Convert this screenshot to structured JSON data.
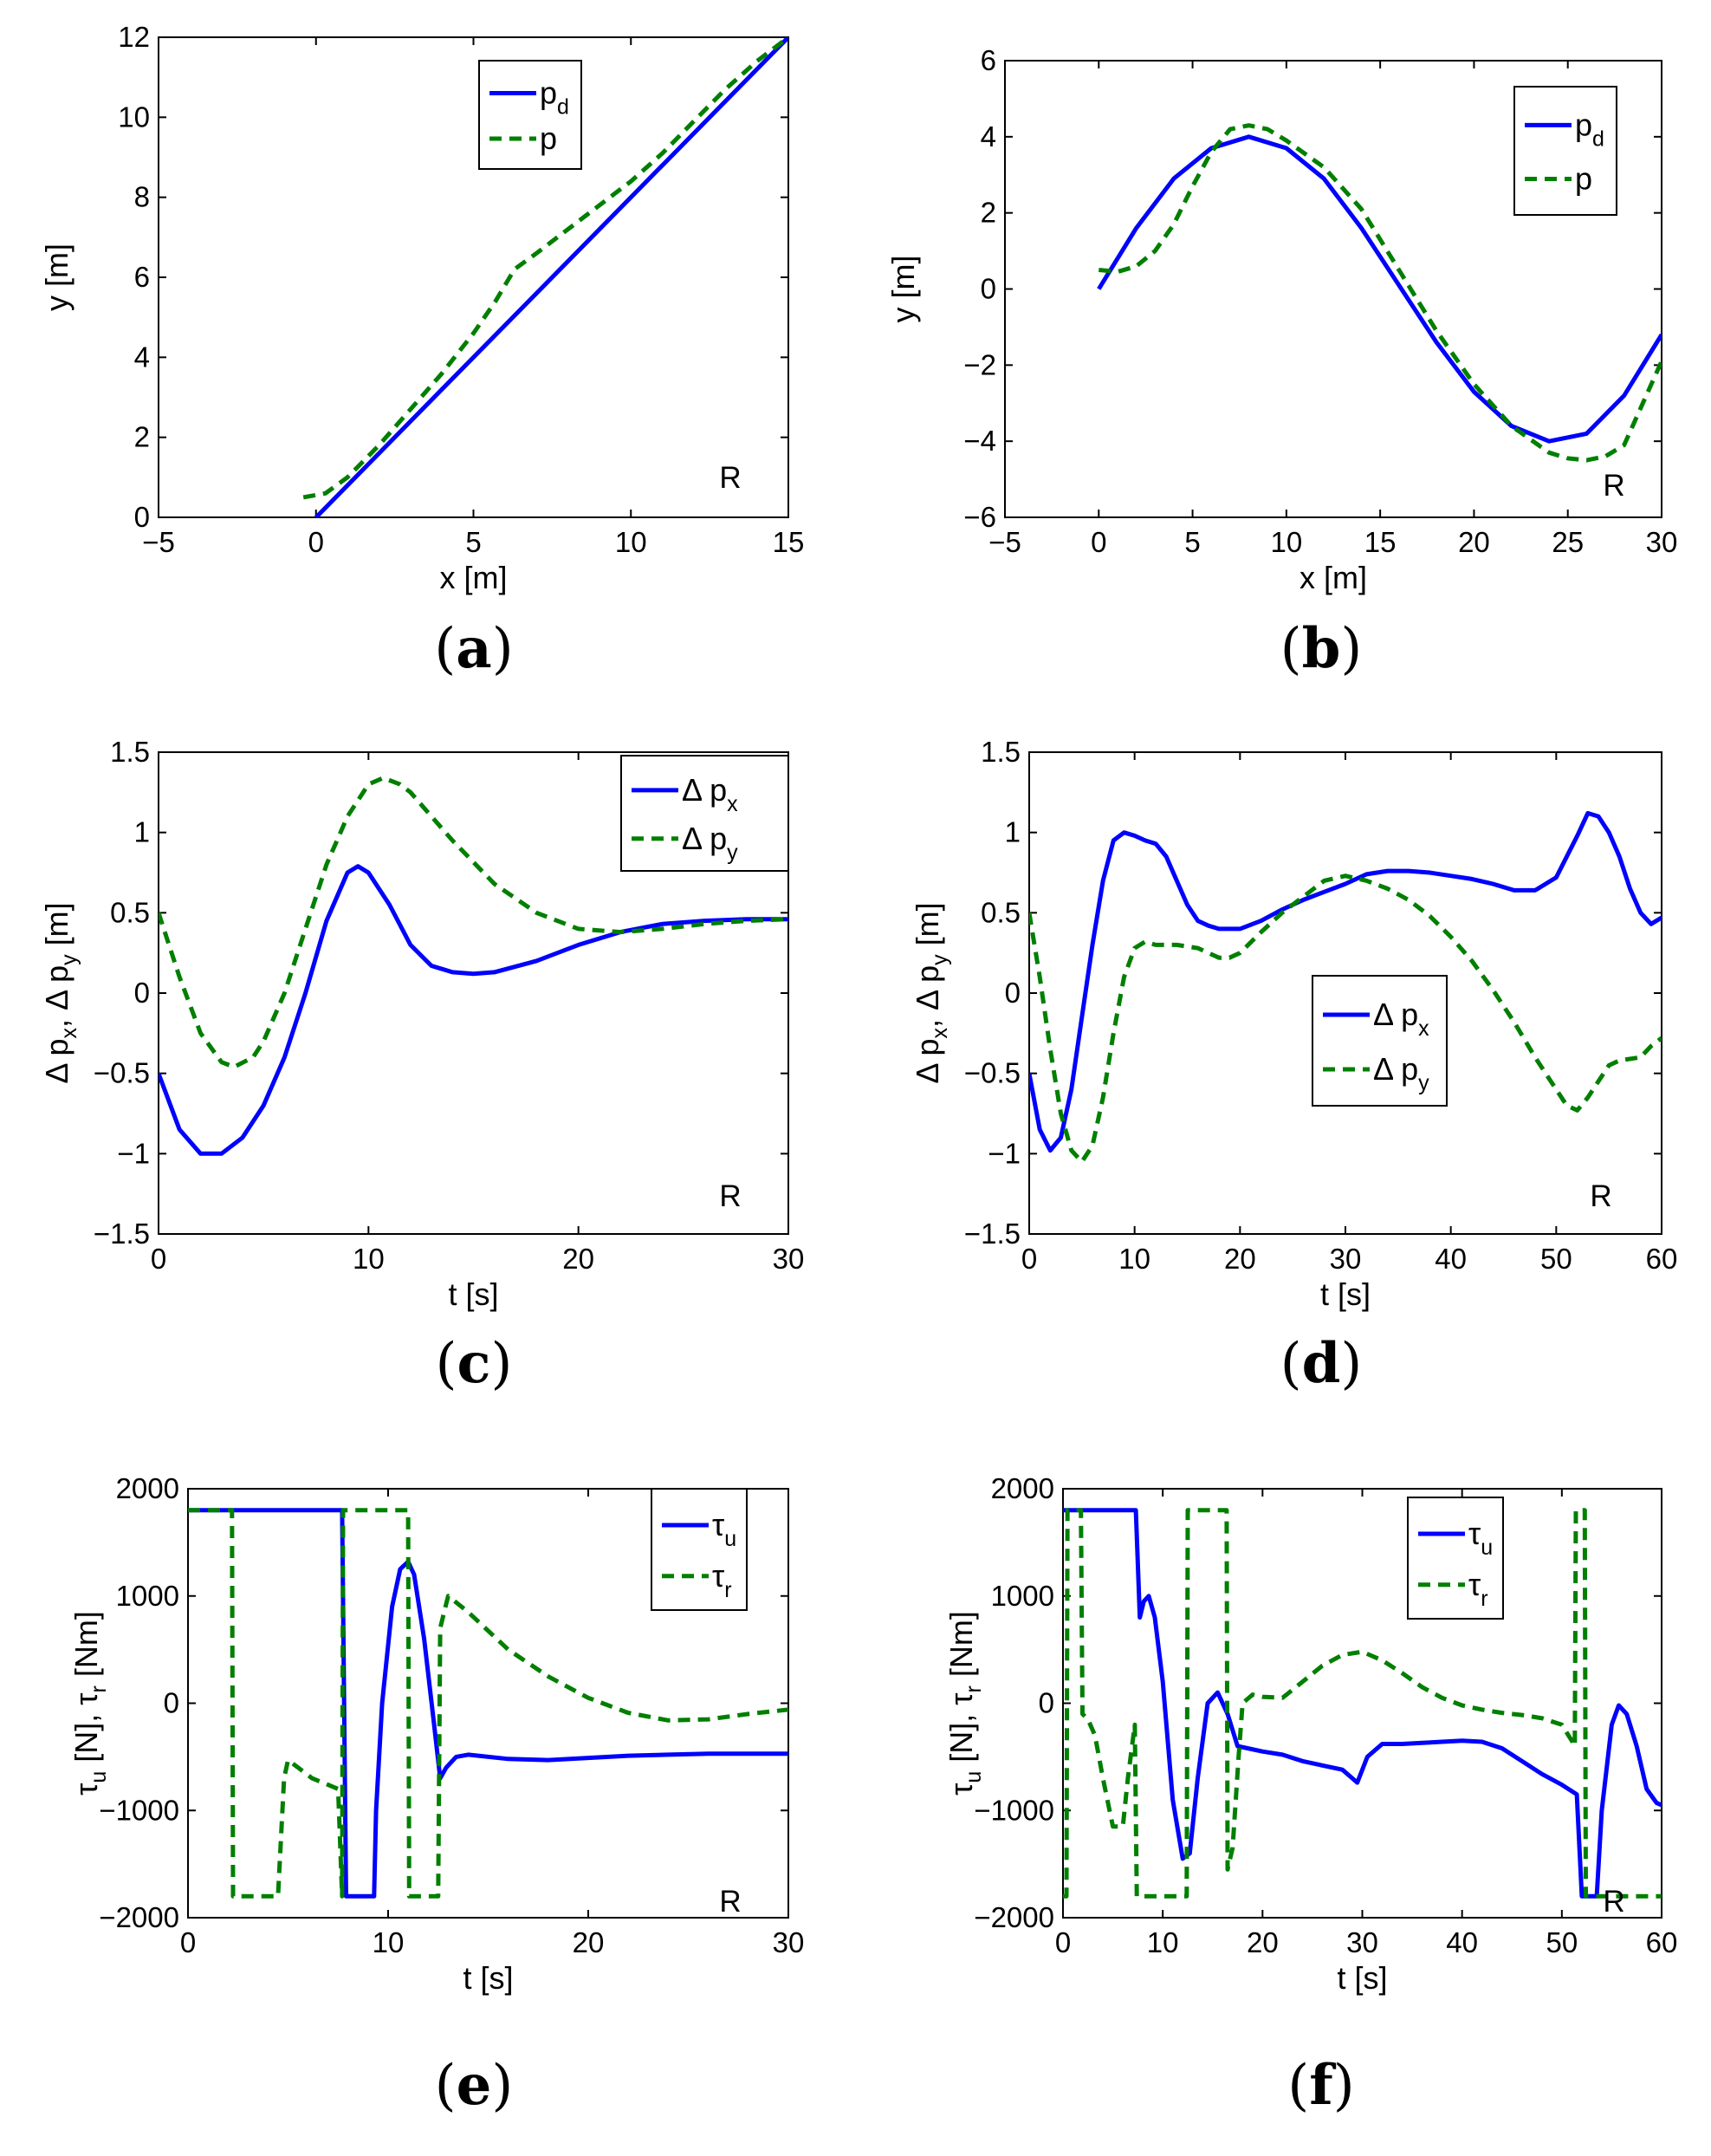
{
  "chart_data": [
    {
      "panel": "(a)",
      "type": "line",
      "xlabel": {
        "base": "x [m]"
      },
      "ylabel": {
        "base": "y [m]"
      },
      "xlim": [
        -5,
        15
      ],
      "ylim": [
        0,
        12
      ],
      "xticks": [
        -5,
        0,
        5,
        10,
        15
      ],
      "yticks": [
        0,
        2,
        4,
        6,
        8,
        10,
        12
      ],
      "annotation": "R",
      "legend_position": "top-right",
      "series": [
        {
          "legend": {
            "base": "p",
            "sub": "d"
          },
          "color": "#0000ff",
          "style": "solid",
          "x": [
            0,
            15
          ],
          "y": [
            0,
            12
          ]
        },
        {
          "legend": {
            "base": "p",
            "sub": ""
          },
          "color": "#007f00",
          "style": "dashed",
          "x": [
            -0.4,
            0.3,
            1,
            2,
            3,
            4,
            5,
            5.7,
            6.3,
            7,
            8,
            9,
            10,
            11,
            12,
            13,
            14,
            15
          ],
          "y": [
            0.5,
            0.6,
            1.0,
            1.8,
            2.7,
            3.6,
            4.6,
            5.4,
            6.2,
            6.6,
            7.2,
            7.8,
            8.4,
            9.1,
            9.9,
            10.7,
            11.4,
            12
          ]
        }
      ]
    },
    {
      "panel": "(b)",
      "type": "line",
      "xlabel": {
        "base": "x [m]"
      },
      "ylabel": {
        "base": "y [m]"
      },
      "xlim": [
        -5,
        30
      ],
      "ylim": [
        -6,
        6
      ],
      "xticks": [
        -5,
        0,
        5,
        10,
        15,
        20,
        25,
        30
      ],
      "yticks": [
        -6,
        -4,
        -2,
        0,
        2,
        4,
        6
      ],
      "annotation": "R",
      "legend_position": "top-right",
      "series": [
        {
          "legend": {
            "base": "p",
            "sub": "d"
          },
          "color": "#0000ff",
          "style": "solid",
          "x": [
            0,
            2,
            4,
            6,
            8,
            10,
            12,
            14,
            16,
            18,
            20,
            22,
            24,
            26,
            28,
            30
          ],
          "y": [
            0,
            1.6,
            2.9,
            3.7,
            4.0,
            3.7,
            2.9,
            1.6,
            0.1,
            -1.4,
            -2.7,
            -3.6,
            -4.0,
            -3.8,
            -2.8,
            -1.2
          ]
        },
        {
          "legend": {
            "base": "p",
            "sub": ""
          },
          "color": "#007f00",
          "style": "dashed",
          "x": [
            0,
            1,
            2,
            3,
            4,
            5,
            6,
            7,
            8,
            9,
            10,
            12,
            14,
            16,
            18,
            20,
            22,
            24,
            25,
            26,
            27,
            28,
            30
          ],
          "y": [
            0.5,
            0.45,
            0.6,
            1.0,
            1.7,
            2.7,
            3.6,
            4.2,
            4.3,
            4.2,
            3.9,
            3.2,
            2.1,
            0.5,
            -1.1,
            -2.5,
            -3.6,
            -4.3,
            -4.45,
            -4.5,
            -4.4,
            -4.1,
            -1.9
          ]
        }
      ]
    },
    {
      "panel": "(c)",
      "type": "line",
      "xlabel": {
        "base": "t [s]"
      },
      "ylabel": {
        "parts": [
          [
            "Δ p",
            ""
          ],
          [
            "x",
            "sub"
          ],
          [
            ", Δ p",
            ""
          ],
          [
            "y",
            "sub"
          ],
          [
            " [m]",
            ""
          ]
        ]
      },
      "xlim": [
        0,
        30
      ],
      "ylim": [
        -1.5,
        1.5
      ],
      "xticks": [
        0,
        10,
        20,
        30
      ],
      "yticks": [
        -1.5,
        -1,
        -0.5,
        0,
        0.5,
        1,
        1.5
      ],
      "annotation": "R",
      "legend_position": "top-right",
      "series": [
        {
          "legend": {
            "base": "Δ p",
            "sub": "x"
          },
          "color": "#0000ff",
          "style": "solid",
          "x": [
            0,
            1,
            2,
            3,
            4,
            5,
            6,
            7,
            8,
            9,
            9.5,
            10,
            11,
            12,
            13,
            14,
            15,
            16,
            18,
            20,
            22,
            24,
            26,
            28,
            30
          ],
          "y": [
            -0.5,
            -0.85,
            -1.0,
            -1.0,
            -0.9,
            -0.7,
            -0.4,
            0.0,
            0.45,
            0.75,
            0.79,
            0.75,
            0.55,
            0.3,
            0.17,
            0.13,
            0.12,
            0.13,
            0.2,
            0.3,
            0.38,
            0.43,
            0.45,
            0.46,
            0.46
          ]
        },
        {
          "legend": {
            "base": "Δ p",
            "sub": "y"
          },
          "color": "#007f00",
          "style": "dashed",
          "x": [
            0,
            1,
            2,
            3,
            3.6,
            4.5,
            5,
            6,
            7,
            8,
            9,
            10,
            10.7,
            11.5,
            12,
            13,
            14,
            16,
            18,
            20,
            22,
            24,
            26,
            28,
            30
          ],
          "y": [
            0.5,
            0.1,
            -0.25,
            -0.43,
            -0.46,
            -0.4,
            -0.3,
            0.0,
            0.4,
            0.8,
            1.1,
            1.3,
            1.34,
            1.3,
            1.25,
            1.1,
            0.95,
            0.68,
            0.5,
            0.4,
            0.38,
            0.4,
            0.43,
            0.45,
            0.46
          ]
        }
      ]
    },
    {
      "panel": "(d)",
      "type": "line",
      "xlabel": {
        "base": "t [s]"
      },
      "ylabel": {
        "parts": [
          [
            "Δ p",
            ""
          ],
          [
            "x",
            "sub"
          ],
          [
            ", Δ p",
            ""
          ],
          [
            "y",
            "sub"
          ],
          [
            " [m]",
            ""
          ]
        ]
      },
      "xlim": [
        0,
        60
      ],
      "ylim": [
        -1.5,
        1.5
      ],
      "xticks": [
        0,
        10,
        20,
        30,
        40,
        50,
        60
      ],
      "yticks": [
        -1.5,
        -1,
        -0.5,
        0,
        0.5,
        1,
        1.5
      ],
      "annotation": "R",
      "legend_position": "center",
      "series": [
        {
          "legend": {
            "base": "Δ p",
            "sub": "x"
          },
          "color": "#0000ff",
          "style": "solid",
          "x": [
            0,
            1,
            2,
            3,
            4,
            5,
            6,
            7,
            8,
            9,
            10,
            11,
            12,
            13,
            14,
            15,
            16,
            17,
            18,
            19,
            20,
            22,
            24,
            26,
            28,
            30,
            32,
            34,
            36,
            38,
            40,
            42,
            44,
            46,
            48,
            50,
            52,
            53,
            54,
            55,
            56,
            57,
            58,
            59,
            60
          ],
          "y": [
            -0.5,
            -0.85,
            -0.98,
            -0.9,
            -0.6,
            -0.15,
            0.3,
            0.7,
            0.95,
            1.0,
            0.98,
            0.95,
            0.93,
            0.85,
            0.7,
            0.55,
            0.45,
            0.42,
            0.4,
            0.4,
            0.4,
            0.45,
            0.52,
            0.58,
            0.63,
            0.68,
            0.74,
            0.76,
            0.76,
            0.75,
            0.73,
            0.71,
            0.68,
            0.64,
            0.64,
            0.72,
            0.98,
            1.12,
            1.1,
            1.0,
            0.85,
            0.65,
            0.5,
            0.43,
            0.47
          ]
        },
        {
          "legend": {
            "base": "Δ p",
            "sub": "y"
          },
          "color": "#007f00",
          "style": "dashed",
          "x": [
            0,
            1,
            2,
            3,
            4,
            5,
            6,
            7,
            8,
            9,
            10,
            11,
            12,
            14,
            16,
            18,
            19,
            20,
            22,
            24,
            26,
            28,
            30,
            32,
            34,
            36,
            38,
            40,
            42,
            44,
            46,
            48,
            50,
            51,
            52,
            53,
            54,
            55,
            56,
            58,
            59,
            60
          ],
          "y": [
            0.5,
            0.1,
            -0.35,
            -0.75,
            -0.98,
            -1.05,
            -0.95,
            -0.65,
            -0.25,
            0.1,
            0.28,
            0.32,
            0.3,
            0.3,
            0.28,
            0.22,
            0.22,
            0.25,
            0.38,
            0.5,
            0.6,
            0.7,
            0.73,
            0.7,
            0.65,
            0.58,
            0.48,
            0.35,
            0.2,
            0.02,
            -0.18,
            -0.4,
            -0.6,
            -0.7,
            -0.73,
            -0.65,
            -0.55,
            -0.45,
            -0.42,
            -0.4,
            -0.33,
            -0.28
          ]
        }
      ]
    },
    {
      "panel": "(e)",
      "type": "line",
      "xlabel": {
        "base": "t [s]"
      },
      "ylabel": {
        "parts": [
          [
            "τ",
            ""
          ],
          [
            "u",
            "sub"
          ],
          [
            " [N], τ",
            ""
          ],
          [
            "r",
            "sub"
          ],
          [
            " [Nm]",
            ""
          ]
        ]
      },
      "xlim": [
        0,
        30
      ],
      "ylim": [
        -2000,
        2000
      ],
      "xticks": [
        0,
        10,
        20,
        30
      ],
      "yticks": [
        -2000,
        -1000,
        0,
        1000,
        2000
      ],
      "annotation": "R",
      "legend_position": "top-right",
      "series": [
        {
          "legend": {
            "base": "τ",
            "sub": "u"
          },
          "color": "#0000ff",
          "style": "solid",
          "x": [
            0,
            7.7,
            7.9,
            8.0,
            9.3,
            9.4,
            9.7,
            10.2,
            10.6,
            11.0,
            11.3,
            11.8,
            12.3,
            12.6,
            12.9,
            13.4,
            14,
            16,
            18,
            20,
            22,
            24,
            26,
            28,
            30
          ],
          "y": [
            1800,
            1800,
            -1800,
            -1800,
            -1800,
            -1000,
            0,
            900,
            1250,
            1320,
            1200,
            600,
            -200,
            -700,
            -600,
            -500,
            -480,
            -520,
            -530,
            -510,
            -490,
            -480,
            -470,
            -470,
            -470
          ]
        },
        {
          "legend": {
            "base": "τ",
            "sub": "r"
          },
          "color": "#007f00",
          "style": "dashed",
          "x": [
            0,
            2.2,
            2.25,
            4.5,
            4.8,
            5.0,
            5.5,
            6.2,
            7.0,
            7.5,
            7.7,
            7.75,
            11.0,
            11.05,
            12.5,
            12.6,
            13.0,
            14,
            16,
            18,
            20,
            22,
            24,
            26,
            28,
            30
          ],
          "y": [
            1800,
            1800,
            -1800,
            -1800,
            -700,
            -530,
            -600,
            -700,
            -760,
            -800,
            -1800,
            1800,
            1800,
            -1800,
            -1800,
            700,
            1000,
            850,
            500,
            250,
            50,
            -90,
            -160,
            -150,
            -100,
            -60
          ]
        }
      ]
    },
    {
      "panel": "(f)",
      "type": "line",
      "xlabel": {
        "base": "t [s]"
      },
      "ylabel": {
        "parts": [
          [
            "τ",
            ""
          ],
          [
            "u",
            "sub"
          ],
          [
            " [N], τ",
            ""
          ],
          [
            "r",
            "sub"
          ],
          [
            " [Nm]",
            ""
          ]
        ]
      },
      "xlim": [
        0,
        60
      ],
      "ylim": [
        -2000,
        2000
      ],
      "xticks": [
        0,
        10,
        20,
        30,
        40,
        50,
        60
      ],
      "yticks": [
        -2000,
        -1000,
        0,
        1000,
        2000
      ],
      "annotation": "R",
      "legend_position": "top-center",
      "series": [
        {
          "legend": {
            "base": "τ",
            "sub": "u"
          },
          "color": "#0000ff",
          "style": "solid",
          "x": [
            0,
            7.3,
            7.7,
            8.1,
            8.6,
            9.2,
            10.0,
            11.0,
            12.0,
            12.7,
            13.5,
            14.5,
            15.5,
            16.5,
            17.5,
            18.5,
            20,
            22,
            24,
            26,
            28,
            29,
            29.5,
            30.5,
            32,
            34,
            36,
            38,
            40,
            42,
            44,
            46,
            48,
            50,
            51.5,
            52.0,
            52.5,
            53.0,
            53.5,
            54,
            55,
            55.7,
            56.5,
            57.5,
            58.5,
            59.5,
            60
          ],
          "y": [
            1800,
            1800,
            800,
            950,
            1000,
            800,
            200,
            -900,
            -1450,
            -1400,
            -700,
            0,
            100,
            -100,
            -400,
            -420,
            -450,
            -480,
            -540,
            -580,
            -620,
            -700,
            -740,
            -500,
            -380,
            -380,
            -370,
            -360,
            -350,
            -360,
            -420,
            -540,
            -660,
            -760,
            -850,
            -1800,
            -1800,
            -1800,
            -1800,
            -1000,
            -200,
            -20,
            -100,
            -400,
            -800,
            -930,
            -950
          ]
        },
        {
          "legend": {
            "base": "τ",
            "sub": "r"
          },
          "color": "#007f00",
          "style": "dashed",
          "x": [
            0,
            0.35,
            0.45,
            1.8,
            1.95,
            2.5,
            3.2,
            4.0,
            5.0,
            6.0,
            6.5,
            7.2,
            7.4,
            7.6,
            12.4,
            12.5,
            16.4,
            16.5,
            17.0,
            17.6,
            18.0,
            19,
            20,
            22,
            24,
            26,
            28,
            30,
            32,
            34,
            36,
            38,
            40,
            42,
            44,
            46,
            48,
            50,
            51.0,
            51.3,
            51.4,
            52.3,
            52.4,
            55,
            60
          ],
          "y": [
            -1800,
            -1800,
            1800,
            1800,
            -100,
            -150,
            -300,
            -700,
            -1150,
            -1150,
            -700,
            -200,
            -1800,
            -1800,
            -1800,
            1800,
            1800,
            -1550,
            -1350,
            -500,
            0,
            80,
            60,
            50,
            200,
            350,
            450,
            480,
            400,
            280,
            150,
            50,
            -20,
            -60,
            -90,
            -110,
            -140,
            -200,
            -350,
            -400,
            1800,
            1800,
            -1800,
            -1800,
            -1800
          ]
        }
      ]
    }
  ],
  "captions": [
    {
      "open": "(",
      "letter": "a",
      "close": ")"
    },
    {
      "open": "(",
      "letter": "b",
      "close": ")"
    },
    {
      "open": "(",
      "letter": "c",
      "close": ")"
    },
    {
      "open": "(",
      "letter": "d",
      "close": ")"
    },
    {
      "open": "(",
      "letter": "e",
      "close": ")"
    },
    {
      "open": "(",
      "letter": "f",
      "close": ")"
    }
  ]
}
